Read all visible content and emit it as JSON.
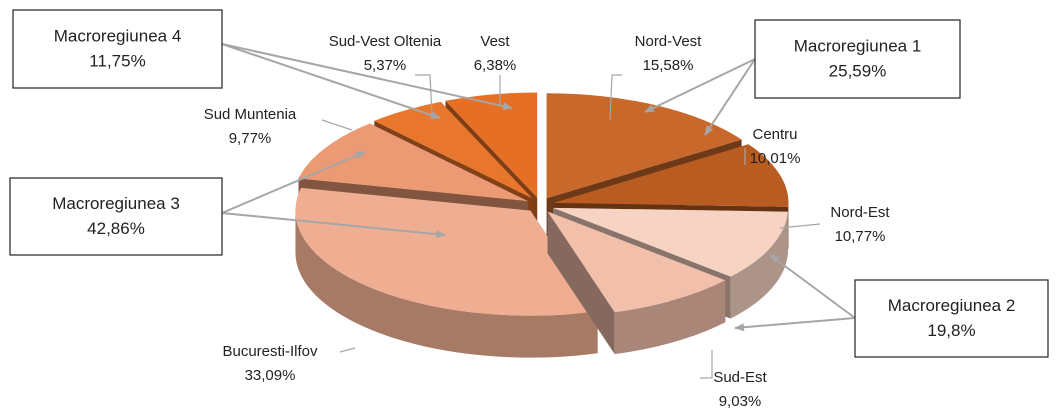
{
  "chart_data": {
    "type": "pie",
    "categories": [
      "Nord-Vest",
      "Centru",
      "Nord-Est",
      "Sud-Est",
      "Bucuresti-Ilfov",
      "Sud Muntenia",
      "Sud-Vest Oltenia",
      "Vest"
    ],
    "values": [
      15.58,
      10.01,
      10.77,
      9.03,
      33.09,
      9.77,
      5.37,
      6.38
    ],
    "value_labels": [
      "15,58%",
      "10,01%",
      "10,77%",
      "9,03%",
      "33,09%",
      "9,77%",
      "5,37%",
      "6,38%"
    ],
    "colors": [
      "#c8682a",
      "#b85c22",
      "#f7d3c3",
      "#f2bfab",
      "#efae91",
      "#eb9a74",
      "#e8762c",
      "#e66f26"
    ],
    "annotations": [
      {
        "text": "Macroregiunea 1",
        "value": 25.59,
        "value_label": "25,59%"
      },
      {
        "text": "Macroregiunea 2",
        "value": 19.8,
        "value_label": "19,8%"
      },
      {
        "text": "Macroregiunea 3",
        "value": 42.86,
        "value_label": "42,86%"
      },
      {
        "text": "Macroregiunea 4",
        "value": 11.75,
        "value_label": "11,75%"
      }
    ]
  }
}
